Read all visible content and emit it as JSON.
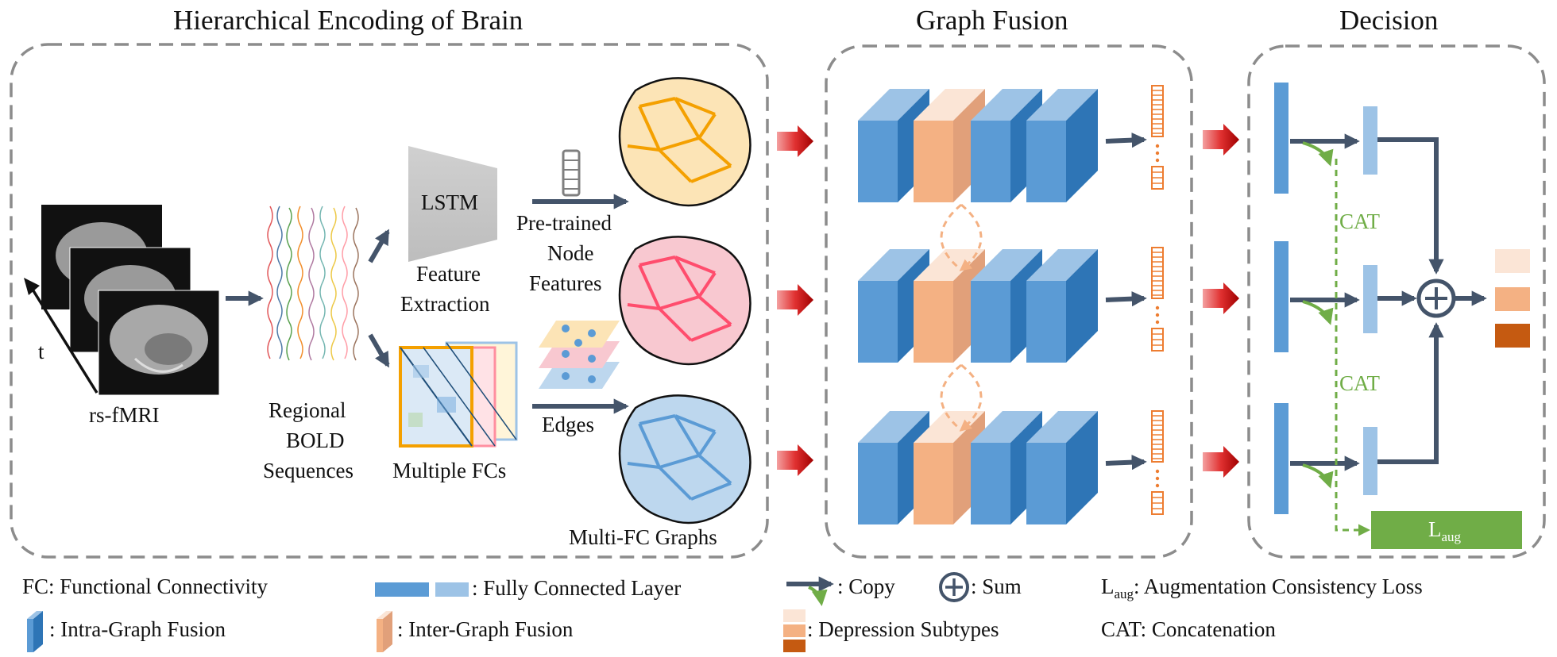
{
  "titles": {
    "encoding": "Hierarchical Encoding of Brain",
    "fusion": "Graph Fusion",
    "decision": "Decision"
  },
  "labels": {
    "time_axis": "t",
    "rs_fmri": "rs-fMRI",
    "bold_1": "Regional",
    "bold_2": "BOLD",
    "bold_3": "Sequences",
    "lstm": "LSTM",
    "feature_1": "Feature",
    "feature_2": "Extraction",
    "pretrained_1": "Pre-trained",
    "pretrained_2": "Node",
    "pretrained_3": "Features",
    "edges": "Edges",
    "multiple_fcs": "Multiple FCs",
    "multi_fc_graphs": "Multi-FC Graphs",
    "cat_top": "CAT",
    "cat_bottom": "CAT",
    "l_aug_main": "L",
    "l_aug_sub": "aug"
  },
  "legend": {
    "fc": "FC: Functional Connectivity",
    "intra": ": Intra-Graph Fusion",
    "fully_connected": ": Fully Connected Layer",
    "inter": ": Inter-Graph Fusion",
    "copy": ": Copy",
    "sum": ": Sum",
    "depression": ": Depression Subtypes",
    "laug_main": "L",
    "laug_sub": "aug",
    "laug_text": ": Augmentation Consistency Loss",
    "cat": "CAT: Concatenation"
  },
  "colors": {
    "intra_block": "#5b9bd5",
    "inter_block": "#f4b183",
    "fc_dark": "#5b9bd5",
    "fc_light": "#9dc3e6",
    "arrow_dark": "#44546a",
    "arrow_red": "#c00000",
    "green": "#70ad47",
    "orange": "#ed7d31",
    "subtype_1": "#fbe5d6",
    "subtype_2": "#f4b183",
    "subtype_3": "#c55a11"
  }
}
